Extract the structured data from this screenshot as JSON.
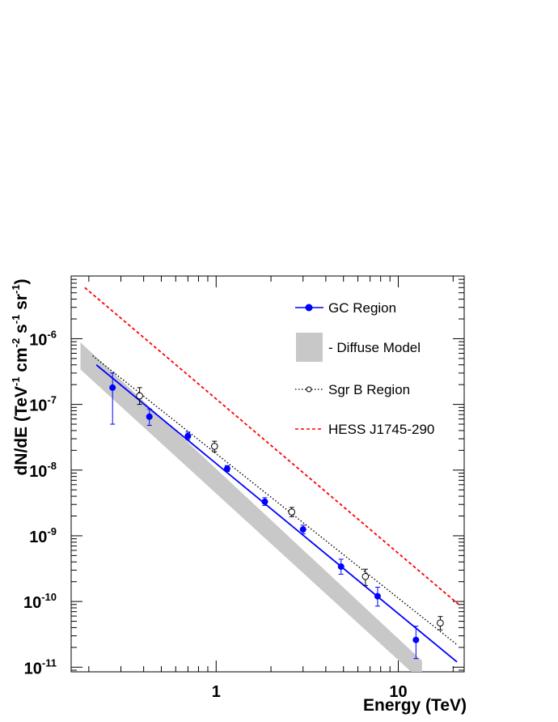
{
  "chart_data": {
    "type": "scatter",
    "xlabel": "Energy (TeV)",
    "ylabel_parts": {
      "base": "dN/dE (TeV",
      "e1": "-1",
      "t2": " cm",
      "e2": "-2",
      "t3": " s",
      "e3": "-1",
      "t4": " sr",
      "e4": "-1",
      "t5": ")"
    },
    "x_scale": "log",
    "y_scale": "log",
    "xlim": [
      0.16,
      23
    ],
    "ylim": [
      8.5e-12,
      9e-06
    ],
    "x_tick_labels": [
      {
        "value": 1,
        "label": "1"
      },
      {
        "value": 10,
        "label": "10"
      }
    ],
    "y_tick_labels": [
      {
        "value": 1e-11,
        "base": "10",
        "exp": "-11"
      },
      {
        "value": 1e-10,
        "base": "10",
        "exp": "-10"
      },
      {
        "value": 1e-09,
        "base": "10",
        "exp": "-9"
      },
      {
        "value": 1e-08,
        "base": "10",
        "exp": "-8"
      },
      {
        "value": 1e-07,
        "base": "10",
        "exp": "-7"
      },
      {
        "value": 1e-06,
        "base": "10",
        "exp": "-6"
      }
    ],
    "legend_position": "top-right",
    "series": [
      {
        "name": "GC Region",
        "color": "#0000ff",
        "marker": "filled-circle",
        "points": [
          {
            "x": 0.27,
            "y": 1.8e-07,
            "ylo": 5e-08,
            "yhi": 3e-07
          },
          {
            "x": 0.43,
            "y": 6.5e-08,
            "ylo": 4.8e-08,
            "yhi": 8.5e-08
          },
          {
            "x": 0.7,
            "y": 3.3e-08,
            "ylo": 2.9e-08,
            "yhi": 3.8e-08
          },
          {
            "x": 1.15,
            "y": 1.05e-08,
            "ylo": 9.5e-09,
            "yhi": 1.17e-08
          },
          {
            "x": 1.85,
            "y": 3.3e-09,
            "ylo": 2.9e-09,
            "yhi": 3.8e-09
          },
          {
            "x": 3.0,
            "y": 1.25e-09,
            "ylo": 1.07e-09,
            "yhi": 1.45e-09
          },
          {
            "x": 4.85,
            "y": 3.4e-10,
            "ylo": 2.6e-10,
            "yhi": 4.4e-10
          },
          {
            "x": 7.7,
            "y": 1.2e-10,
            "ylo": 8.5e-11,
            "yhi": 1.65e-10
          },
          {
            "x": 12.5,
            "y": 2.6e-11,
            "ylo": 1.35e-11,
            "yhi": 4.2e-11
          }
        ],
        "fit": {
          "x1": 0.22,
          "y1": 4e-07,
          "x2": 21.0,
          "y2": 1.2e-11
        }
      },
      {
        "name": "Diffuse Model",
        "legend_label": "- Diffuse Model",
        "color": "#c8c8c8",
        "style": "band",
        "band": [
          {
            "x": 0.18,
            "lo": 3.4e-07,
            "hi": 8.8e-07
          },
          {
            "x": 13.5,
            "lo": 6e-12,
            "hi": 1.25e-11
          }
        ]
      },
      {
        "name": "Sgr B Region",
        "color": "#000000",
        "marker": "open-circle",
        "line": "dotted",
        "points": [
          {
            "x": 0.38,
            "y": 1.35e-07,
            "ylo": 1e-07,
            "yhi": 1.8e-07
          },
          {
            "x": 0.98,
            "y": 2.3e-08,
            "ylo": 1.9e-08,
            "yhi": 2.75e-08
          },
          {
            "x": 2.6,
            "y": 2.3e-09,
            "ylo": 1.95e-09,
            "yhi": 2.7e-09
          },
          {
            "x": 6.6,
            "y": 2.4e-10,
            "ylo": 1.75e-10,
            "yhi": 3.1e-10
          },
          {
            "x": 17.0,
            "y": 4.7e-11,
            "ylo": 3.7e-11,
            "yhi": 5.9e-11
          }
        ],
        "fit": {
          "x1": 0.21,
          "y1": 5.5e-07,
          "x2": 21.0,
          "y2": 2.2e-11
        }
      },
      {
        "name": "HESS J1745-290",
        "color": "#ff0000",
        "line": "dashed",
        "fit": {
          "x1": 0.19,
          "y1": 6e-06,
          "x2": 22.0,
          "y2": 8.5e-11
        }
      }
    ]
  }
}
